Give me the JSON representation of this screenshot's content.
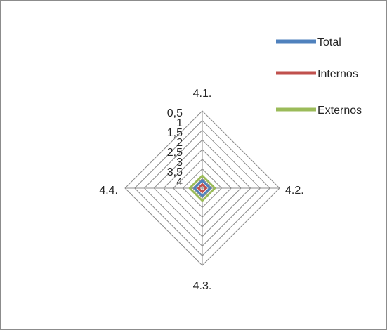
{
  "chart_data": {
    "type": "radar",
    "categories": [
      "4.1.",
      "4.2.",
      "4.3.",
      "4.4."
    ],
    "scale": {
      "min": 0,
      "max": 4,
      "step": 0.5,
      "reversed": true,
      "tick_labels": [
        "0,5",
        "1",
        "1,5",
        "2",
        "2,5",
        "3",
        "3,5",
        "4"
      ]
    },
    "series": [
      {
        "name": "Total",
        "color": "#4f81bd",
        "values": [
          3.6,
          3.6,
          3.6,
          3.6
        ]
      },
      {
        "name": "Internos",
        "color": "#c0504d",
        "values": [
          3.8,
          3.8,
          3.8,
          3.8
        ]
      },
      {
        "name": "Externos",
        "color": "#9bbb59",
        "values": [
          3.35,
          3.35,
          3.35,
          3.35
        ]
      }
    ],
    "legend": {
      "position": "top-right"
    },
    "grid": true
  }
}
